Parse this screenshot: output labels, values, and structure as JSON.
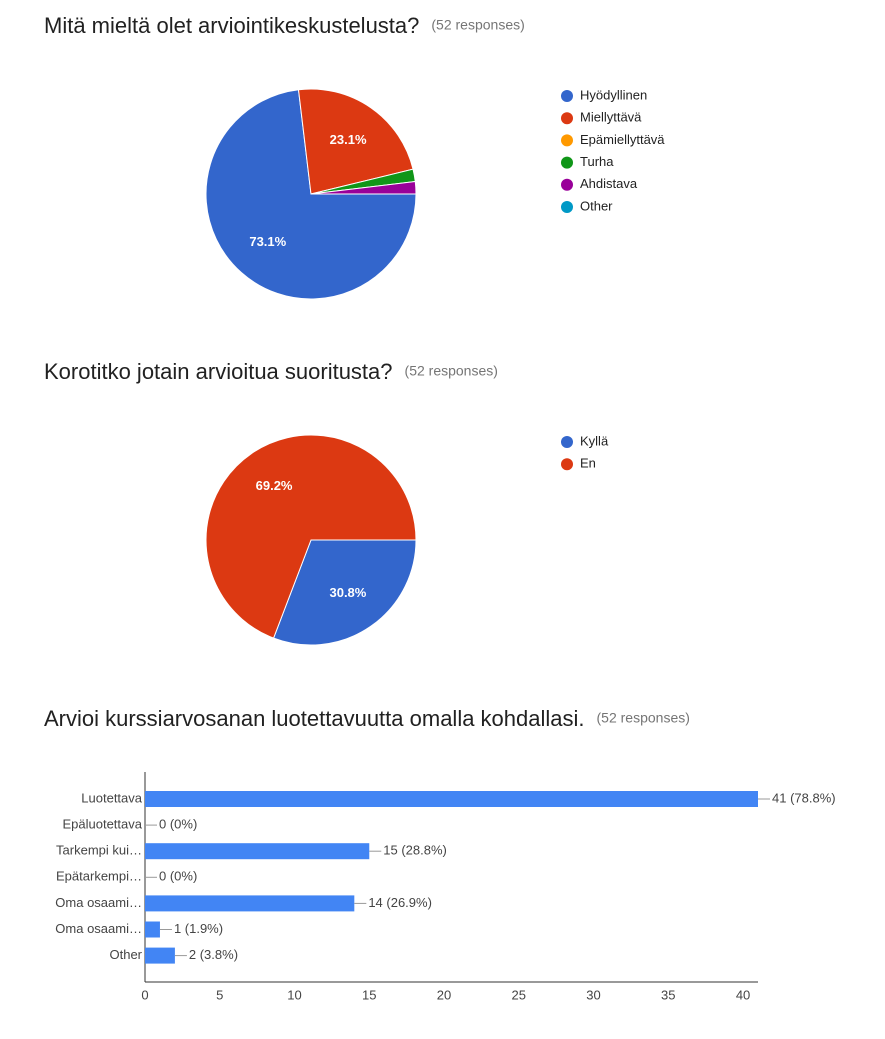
{
  "chart_data": [
    {
      "type": "pie",
      "title": "Mitä mieltä olet arviointikeskustelusta?",
      "subtitle": "(52 responses)",
      "categories": [
        "Hyödyllinen",
        "Miellyttävä",
        "Epämiellyttävä",
        "Turha",
        "Ahdistava",
        "Other"
      ],
      "values": [
        73.1,
        23.1,
        0,
        1.9,
        1.9,
        0
      ],
      "value_labels": [
        "73.1%",
        "23.1%",
        null,
        null,
        null,
        null
      ],
      "colors": [
        "#3366cc",
        "#dc3912",
        "#ff9900",
        "#109618",
        "#990099",
        "#0099c6"
      ],
      "legend": "right"
    },
    {
      "type": "pie",
      "title": "Korotitko jotain arvioitua suoritusta?",
      "subtitle": "(52 responses)",
      "categories": [
        "Kyllä",
        "En"
      ],
      "values": [
        30.8,
        69.2
      ],
      "value_labels": [
        "30.8%",
        "69.2%"
      ],
      "colors": [
        "#3366cc",
        "#dc3912"
      ],
      "legend": "right"
    },
    {
      "type": "hbar",
      "title": "Arvioi kurssiarvosanan luotettavuutta omalla kohdallasi.",
      "subtitle": "(52 responses)",
      "categories": [
        "Luotettava",
        "Epäluotettava",
        "Tarkempi kui…",
        "Epätarkempi…",
        "Oma osaami…",
        "Oma osaami…",
        "Other"
      ],
      "values": [
        41,
        0,
        15,
        0,
        14,
        1,
        2
      ],
      "value_labels": [
        "41 (78.8%)",
        "0 (0%)",
        "15 (28.8%)",
        "0 (0%)",
        "14 (26.9%)",
        "1 (1.9%)",
        "2 (3.8%)"
      ],
      "color": "#4285f4",
      "xlim": [
        0,
        41
      ],
      "xticks": [
        0,
        5,
        10,
        15,
        20,
        25,
        30,
        35,
        40
      ]
    }
  ]
}
